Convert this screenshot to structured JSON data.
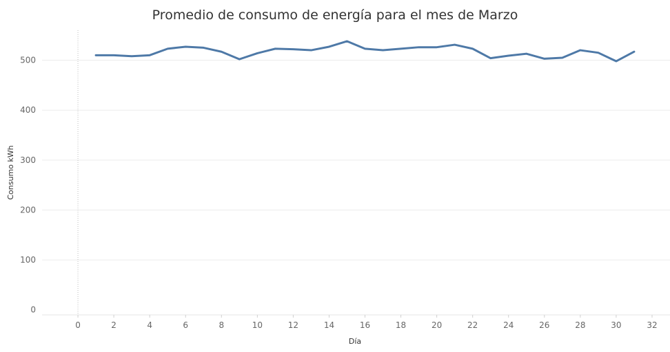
{
  "chart_data": {
    "type": "line",
    "title": "Promedio de consumo de energía para el mes de Marzo",
    "xlabel": "Día",
    "ylabel": "Consumo kWh",
    "xlim": [
      -2,
      33
    ],
    "ylim": [
      -10,
      560
    ],
    "x_ticks": [
      0,
      2,
      4,
      6,
      8,
      10,
      12,
      14,
      16,
      18,
      20,
      22,
      24,
      26,
      28,
      30,
      32
    ],
    "y_ticks": [
      0,
      100,
      200,
      300,
      400,
      500
    ],
    "grid": true,
    "series": [
      {
        "color": "#4e79a7",
        "x": [
          1,
          2,
          3,
          4,
          5,
          6,
          7,
          8,
          9,
          10,
          11,
          12,
          13,
          14,
          15,
          16,
          17,
          18,
          19,
          20,
          21,
          22,
          23,
          24,
          25,
          26,
          27,
          28,
          29,
          30,
          31
        ],
        "values": [
          510,
          510,
          508,
          510,
          523,
          527,
          525,
          517,
          502,
          514,
          523,
          522,
          520,
          527,
          538,
          523,
          520,
          523,
          526,
          526,
          531,
          523,
          504,
          509,
          513,
          503,
          505,
          520,
          515,
          498,
          517
        ]
      }
    ]
  }
}
